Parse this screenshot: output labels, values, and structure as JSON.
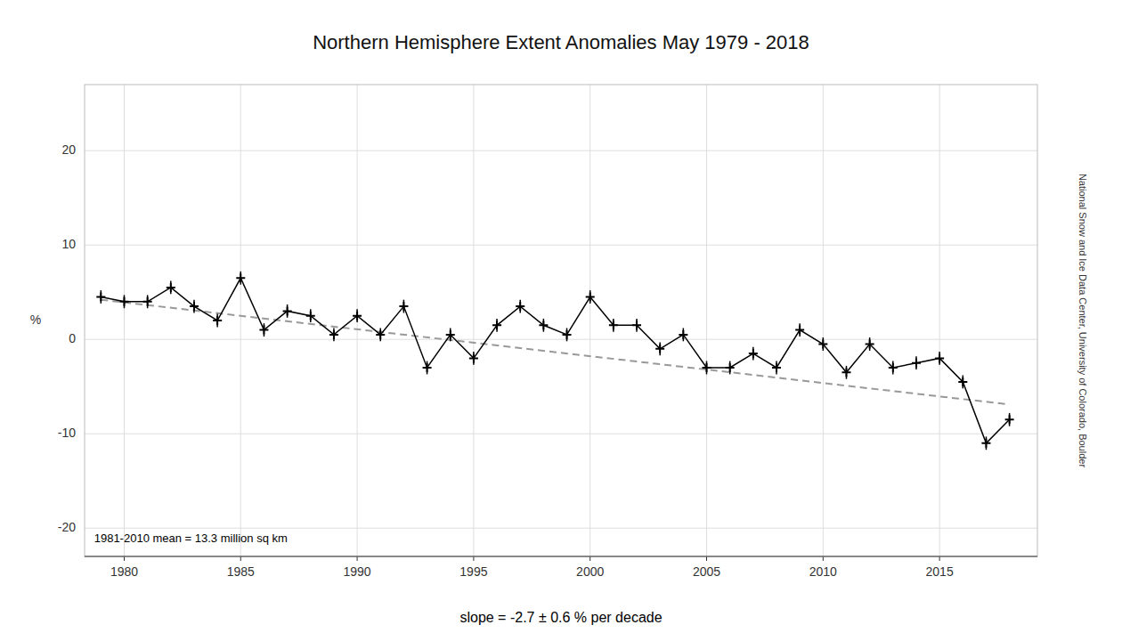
{
  "chart_data": {
    "type": "line",
    "title": "Northern Hemisphere Extent Anomalies May 1979 - 2018",
    "ylabel": "%",
    "annotations": [
      "1981-2010 mean = 13.3 million sq km",
      "slope = -2.7 ± 0.6 % per decade",
      "National Snow and Ice Data Center, University of Colorado, Boulder"
    ],
    "x": [
      1979,
      1980,
      1981,
      1982,
      1983,
      1984,
      1985,
      1986,
      1987,
      1988,
      1989,
      1990,
      1991,
      1992,
      1993,
      1994,
      1995,
      1996,
      1997,
      1998,
      1999,
      2000,
      2001,
      2002,
      2003,
      2004,
      2005,
      2006,
      2007,
      2008,
      2009,
      2010,
      2011,
      2012,
      2013,
      2014,
      2015,
      2016,
      2017,
      2018
    ],
    "series": [
      {
        "type": "line",
        "color": "#000000",
        "marker": "plus",
        "line_style": "solid",
        "values": [
          4.5,
          4.0,
          4.0,
          5.5,
          3.5,
          2.0,
          6.5,
          1.0,
          3.0,
          2.5,
          0.5,
          2.5,
          0.5,
          3.5,
          -3.0,
          0.5,
          -2.0,
          1.5,
          3.5,
          1.5,
          0.5,
          4.5,
          1.5,
          1.5,
          -1.0,
          0.5,
          -3.0,
          -3.0,
          -1.5,
          -3.0,
          1.0,
          -0.5,
          -3.5,
          -0.5,
          -3.0,
          -2.5,
          -2.0,
          -4.5,
          -11.0,
          -8.5
        ],
        "yerr": [
          0.7,
          0.7,
          0.7,
          0.7,
          0.7,
          0.7,
          0.7,
          0.7,
          0.7,
          0.7,
          0.7,
          0.7,
          0.7,
          0.7,
          0.7,
          0.7,
          0.7,
          0.7,
          0.7,
          0.7,
          0.7,
          0.7,
          0.7,
          0.7,
          0.7,
          0.7,
          0.7,
          0.7,
          0.7,
          0.7,
          0.7,
          0.7,
          0.7,
          0.7,
          0.7,
          0.7,
          0.7,
          0.7,
          0.7,
          0.7
        ]
      },
      {
        "type": "line",
        "color": "#999999",
        "line_style": "dashed",
        "x": [
          1979,
          2018
        ],
        "values": [
          4.2,
          -6.9
        ]
      }
    ],
    "xlim": [
      1978.3,
      2019.2
    ],
    "xticks": [
      1980,
      1985,
      1990,
      1995,
      2000,
      2005,
      2010,
      2015
    ],
    "ylim": [
      -23,
      27
    ],
    "yticks": [
      -20,
      -10,
      0,
      10,
      20
    ],
    "grid": true
  }
}
